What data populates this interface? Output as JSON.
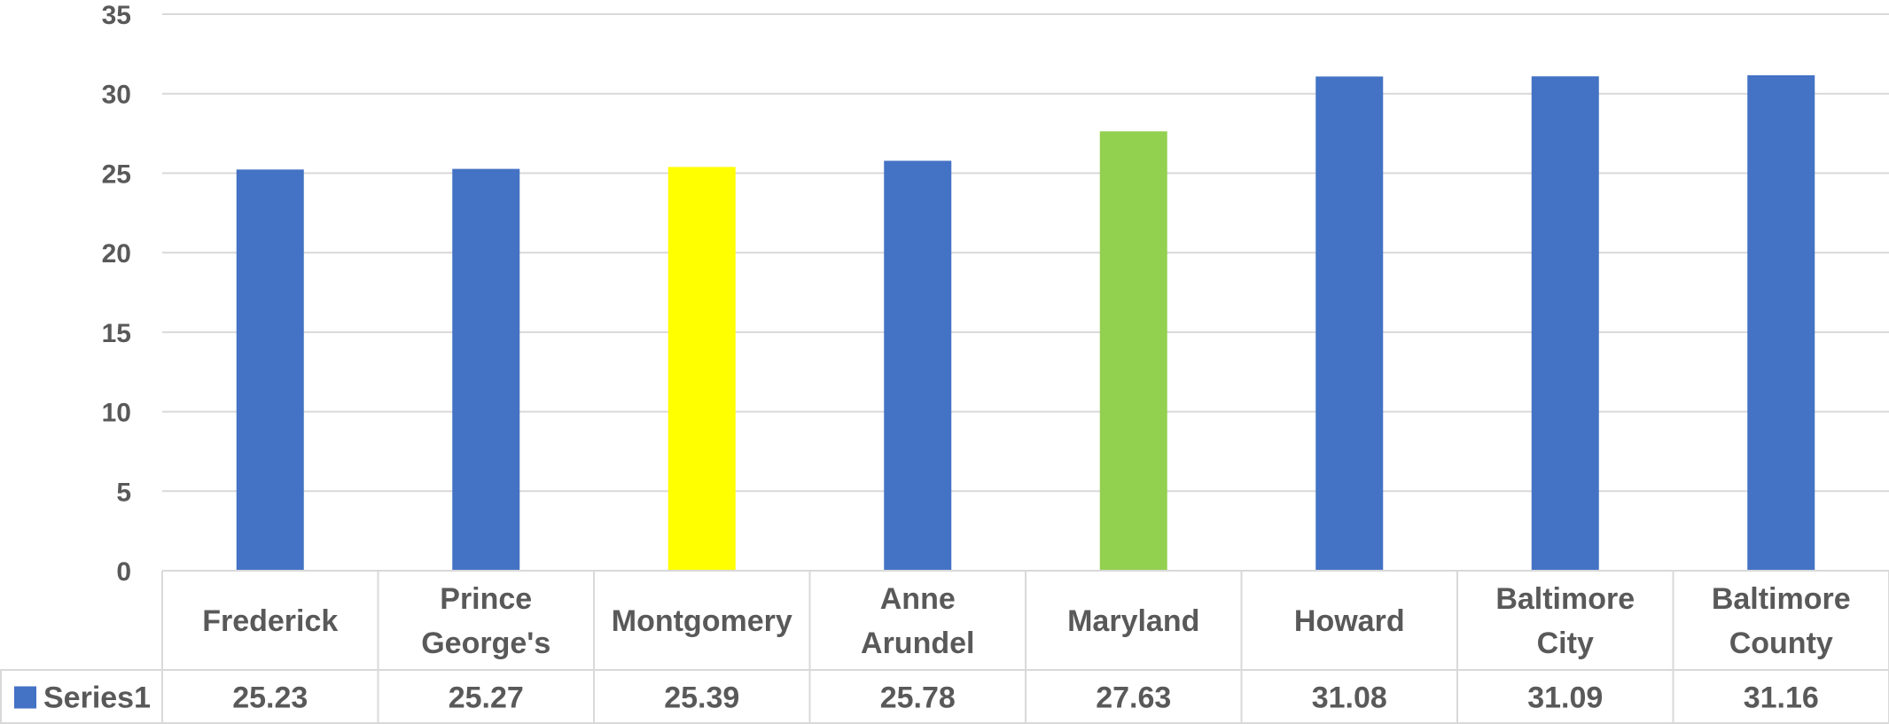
{
  "chart_data": {
    "type": "bar",
    "categories": [
      [
        "Frederick"
      ],
      [
        "Prince",
        "George's"
      ],
      [
        "Montgomery"
      ],
      [
        "Anne",
        "Arundel"
      ],
      [
        "Maryland"
      ],
      [
        "Howard"
      ],
      [
        "Baltimore",
        "City"
      ],
      [
        "Baltimore",
        "County"
      ]
    ],
    "series": [
      {
        "name": "Series1",
        "values": [
          25.23,
          25.27,
          25.39,
          25.78,
          27.63,
          31.08,
          31.09,
          31.16
        ],
        "value_labels": [
          "25.23",
          "25.27",
          "25.39",
          "25.78",
          "27.63",
          "31.08",
          "31.09",
          "31.16"
        ],
        "color": "#4472C4",
        "point_colors": [
          "#4472C4",
          "#4472C4",
          "#FFFF00",
          "#4472C4",
          "#92D050",
          "#4472C4",
          "#4472C4",
          "#4472C4"
        ]
      }
    ],
    "ylim": [
      0,
      35
    ],
    "yticks": [
      0,
      5,
      10,
      15,
      20,
      25,
      30,
      35
    ],
    "grid": true,
    "data_table": true,
    "legend_in_data_table": true,
    "colors": {
      "grid": "#D9D9D9",
      "text": "#595959"
    }
  }
}
